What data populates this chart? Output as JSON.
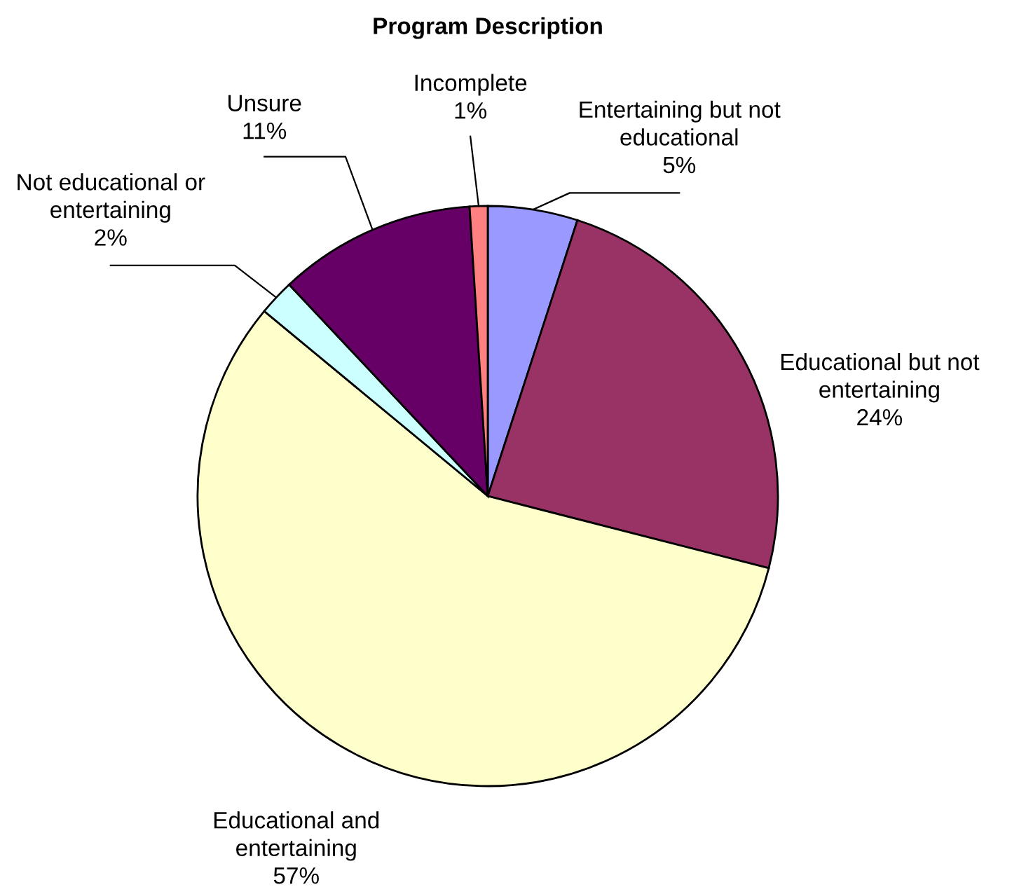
{
  "chart_data": {
    "type": "pie",
    "title": "Program Description",
    "categories": [
      "Entertaining but not\neducational",
      "Educational but not\nentertaining",
      "Educational and\nentertaining",
      "Not educational or\nentertaining",
      "Unsure",
      "Incomplete"
    ],
    "values": [
      5,
      24,
      57,
      2,
      11,
      1
    ],
    "colors": [
      "#9999ff",
      "#993366",
      "#ffffcc",
      "#ccffff",
      "#660066",
      "#ff8080"
    ],
    "value_labels": [
      "5%",
      "24%",
      "57%",
      "2%",
      "11%",
      "1%"
    ],
    "legend": false
  }
}
